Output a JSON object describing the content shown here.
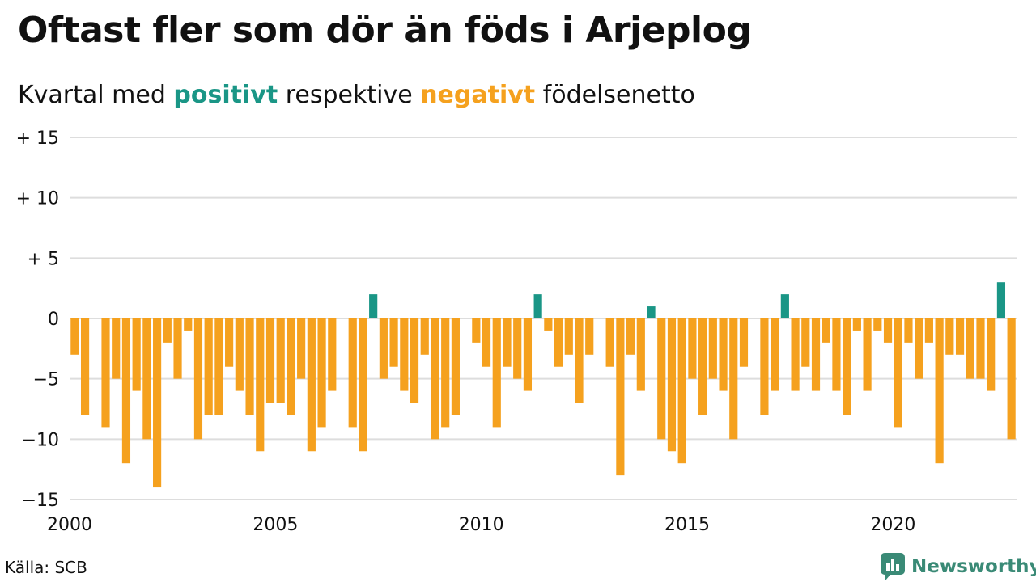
{
  "title": "Oftast fler som dör än föds i Arjeplog",
  "subtitle": {
    "before": "Kvartal med ",
    "positive": "positivt",
    "middle": " respektive ",
    "negative": "negativt",
    "after": " födelsenetto"
  },
  "source": "Källa: SCB",
  "brand": "Newsworthy",
  "colors": {
    "positive": "#1a9686",
    "negative": "#f5a11e",
    "grid": "#dddddd",
    "brand": "#3a8a76"
  },
  "chart_data": {
    "type": "bar",
    "title": "Oftast fler som dör än föds i Arjeplog",
    "subtitle": "Kvartal med positivt respektive negativt födelsenetto",
    "xlabel": "",
    "ylabel": "",
    "ylim": [
      -15,
      15
    ],
    "yticks": [
      {
        "value": 15,
        "label": "+ 15"
      },
      {
        "value": 10,
        "label": "+ 10"
      },
      {
        "value": 5,
        "label": "+  5"
      },
      {
        "value": 0,
        "label": "0"
      },
      {
        "value": -5,
        "label": "−5"
      },
      {
        "value": -10,
        "label": "−10"
      },
      {
        "value": -15,
        "label": "−15"
      }
    ],
    "xticks": [
      "2000",
      "2005",
      "2010",
      "2015",
      "2020"
    ],
    "start_year": 2000,
    "periods_per_year": 4,
    "grid": true,
    "legend": "none",
    "values": [
      -3,
      -8,
      0,
      -9,
      -5,
      -12,
      -6,
      -10,
      -14,
      -2,
      -5,
      -1,
      -10,
      -8,
      -8,
      -4,
      -6,
      -8,
      -11,
      -7,
      -7,
      -8,
      -5,
      -11,
      -9,
      -6,
      0,
      -9,
      -11,
      2,
      -5,
      -4,
      -6,
      -7,
      -3,
      -10,
      -9,
      -8,
      0,
      -2,
      -4,
      -9,
      -4,
      -5,
      -6,
      2,
      -1,
      -4,
      -3,
      -7,
      -3,
      0,
      -4,
      -13,
      -3,
      -6,
      1,
      -10,
      -11,
      -12,
      -5,
      -8,
      -5,
      -6,
      -10,
      -4,
      0,
      -8,
      -6,
      2,
      -6,
      -4,
      -6,
      -2,
      -6,
      -8,
      -1,
      -6,
      -1,
      -2,
      -9,
      -2,
      -5,
      -2,
      -12,
      -3,
      -3,
      -5,
      -5,
      -6,
      3,
      -10
    ]
  }
}
